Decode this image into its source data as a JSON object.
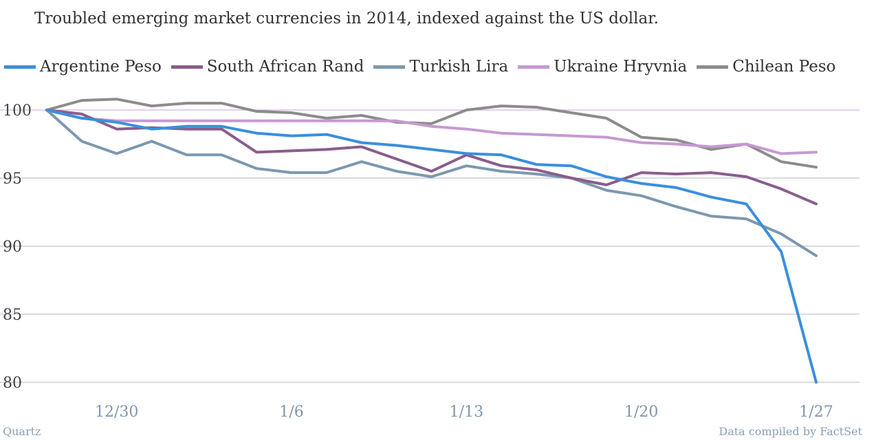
{
  "title": "Troubled emerging market currencies in 2014, indexed against the US dollar.",
  "footer": {
    "source": "Quartz",
    "credit": "Data compiled by FactSet"
  },
  "colors": {
    "gridline": "#b5b5c8",
    "baseline": "#c9a0d6",
    "ytick": "#444444",
    "xtick": "#7f96ad"
  },
  "chart_data": {
    "type": "line",
    "title": "Troubled emerging market currencies in 2014, indexed against the US dollar.",
    "xlabel": "",
    "ylabel": "",
    "x": [
      "12/26",
      "12/27",
      "12/30",
      "12/31",
      "1/1",
      "1/2",
      "1/3",
      "1/6",
      "1/7",
      "1/8",
      "1/9",
      "1/10",
      "1/13",
      "1/14",
      "1/15",
      "1/16",
      "1/17",
      "1/20",
      "1/21",
      "1/22",
      "1/23",
      "1/24",
      "1/27"
    ],
    "x_ticks": [
      "12/30",
      "1/6",
      "1/13",
      "1/20",
      "1/27"
    ],
    "y_ticks": [
      80,
      85,
      90,
      95,
      100
    ],
    "ylim": [
      80,
      100.8
    ],
    "grid": true,
    "legend_position": "top",
    "series": [
      {
        "name": "Argentine Peso",
        "color": "#3a8fdc",
        "values": [
          100,
          99.4,
          99.1,
          98.6,
          98.8,
          98.8,
          98.3,
          98.1,
          98.2,
          97.6,
          97.4,
          97.1,
          96.8,
          96.7,
          96.0,
          95.9,
          95.1,
          94.6,
          94.3,
          93.6,
          93.1,
          89.6,
          80.0
        ]
      },
      {
        "name": "South African Rand",
        "color": "#8a5d8c",
        "values": [
          100,
          99.7,
          98.6,
          98.7,
          98.6,
          98.6,
          96.9,
          97.0,
          97.1,
          97.3,
          96.4,
          95.5,
          96.7,
          95.9,
          95.6,
          95.0,
          94.5,
          95.4,
          95.3,
          95.4,
          95.1,
          94.2,
          93.1
        ]
      },
      {
        "name": "Turkish Lira",
        "color": "#7c98b0",
        "values": [
          100,
          97.7,
          96.8,
          97.7,
          96.7,
          96.7,
          95.7,
          95.4,
          95.4,
          96.2,
          95.5,
          95.1,
          95.9,
          95.5,
          95.3,
          95.0,
          94.1,
          93.7,
          92.9,
          92.2,
          92.0,
          90.9,
          89.3
        ]
      },
      {
        "name": "Ukraine Hryvnia",
        "color": "#c699d2",
        "values": [
          100,
          99.4,
          99.2,
          99.2,
          99.2,
          99.2,
          99.2,
          99.2,
          99.2,
          99.2,
          99.2,
          98.8,
          98.6,
          98.3,
          98.2,
          98.1,
          98.0,
          97.6,
          97.5,
          97.3,
          97.5,
          96.8,
          96.9
        ]
      },
      {
        "name": "Chilean Peso",
        "color": "#8c8c8c",
        "values": [
          100,
          100.7,
          100.8,
          100.3,
          100.5,
          100.5,
          99.9,
          99.8,
          99.4,
          99.6,
          99.1,
          99.0,
          100.0,
          100.3,
          100.2,
          99.8,
          99.4,
          98.0,
          97.8,
          97.1,
          97.5,
          96.2,
          95.8
        ]
      }
    ]
  }
}
